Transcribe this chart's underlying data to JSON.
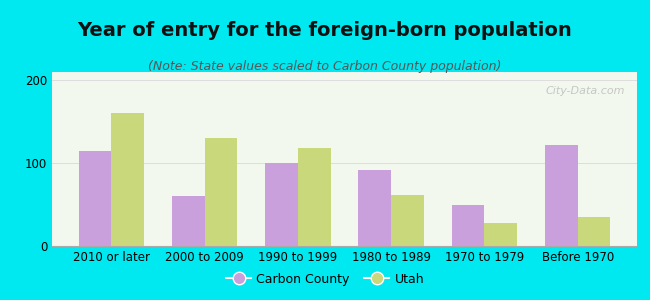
{
  "title": "Year of entry for the foreign-born population",
  "subtitle": "(Note: State values scaled to Carbon County population)",
  "categories": [
    "2010 or later",
    "2000 to 2009",
    "1990 to 1999",
    "1980 to 1989",
    "1970 to 1979",
    "Before 1970"
  ],
  "carbon_county": [
    115,
    60,
    100,
    92,
    50,
    122
  ],
  "utah": [
    160,
    130,
    118,
    62,
    28,
    35
  ],
  "carbon_color": "#c9a0dc",
  "utah_color": "#c8d87a",
  "background_outer": "#00e8f0",
  "background_inner": "#f2f8ee",
  "ylim": [
    0,
    210
  ],
  "yticks": [
    0,
    100,
    200
  ],
  "bar_width": 0.35,
  "legend_carbon": "Carbon County",
  "legend_utah": "Utah",
  "grid_color": "#dddddd",
  "title_fontsize": 14,
  "subtitle_fontsize": 9,
  "tick_fontsize": 8.5,
  "watermark": "City-Data.com"
}
